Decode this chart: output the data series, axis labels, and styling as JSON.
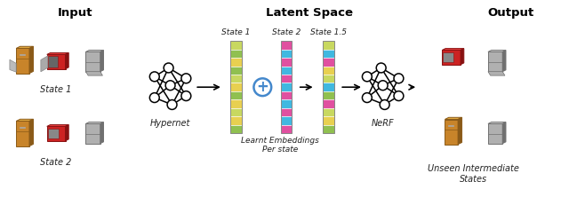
{
  "title_input": "Input",
  "title_latent": "Latent Space",
  "title_output": "Output",
  "label_state1": "State 1",
  "label_state2": "State 2",
  "label_state15": "State 1.5",
  "label_hypernet": "Hypernet",
  "label_nerf": "NeRF",
  "label_learnt": "Learnt Embeddings\nPer state",
  "label_unseen": "Unseen Intermediate\nStates",
  "embed1_colors": [
    "#c8d860",
    "#90c050",
    "#e8d050",
    "#90c050",
    "#c8d860",
    "#e8d050",
    "#90c050",
    "#e8d050",
    "#c8d860",
    "#e8d050",
    "#90c050"
  ],
  "embed2_colors": [
    "#e050a0",
    "#40b8e0",
    "#e050a0",
    "#40b8e0",
    "#e050a0",
    "#40b8e0",
    "#e050a0",
    "#40b8e0",
    "#e050a0",
    "#40b8e0",
    "#e050a0"
  ],
  "embed15_colors": [
    "#c8d860",
    "#40b8e0",
    "#e050a0",
    "#e8d050",
    "#c8d860",
    "#40b8e0",
    "#90c050",
    "#e050a0",
    "#c8d860",
    "#e8d050",
    "#90c050"
  ],
  "plus_color": "#4488cc",
  "fig_width": 6.4,
  "fig_height": 2.31,
  "dpi": 100
}
